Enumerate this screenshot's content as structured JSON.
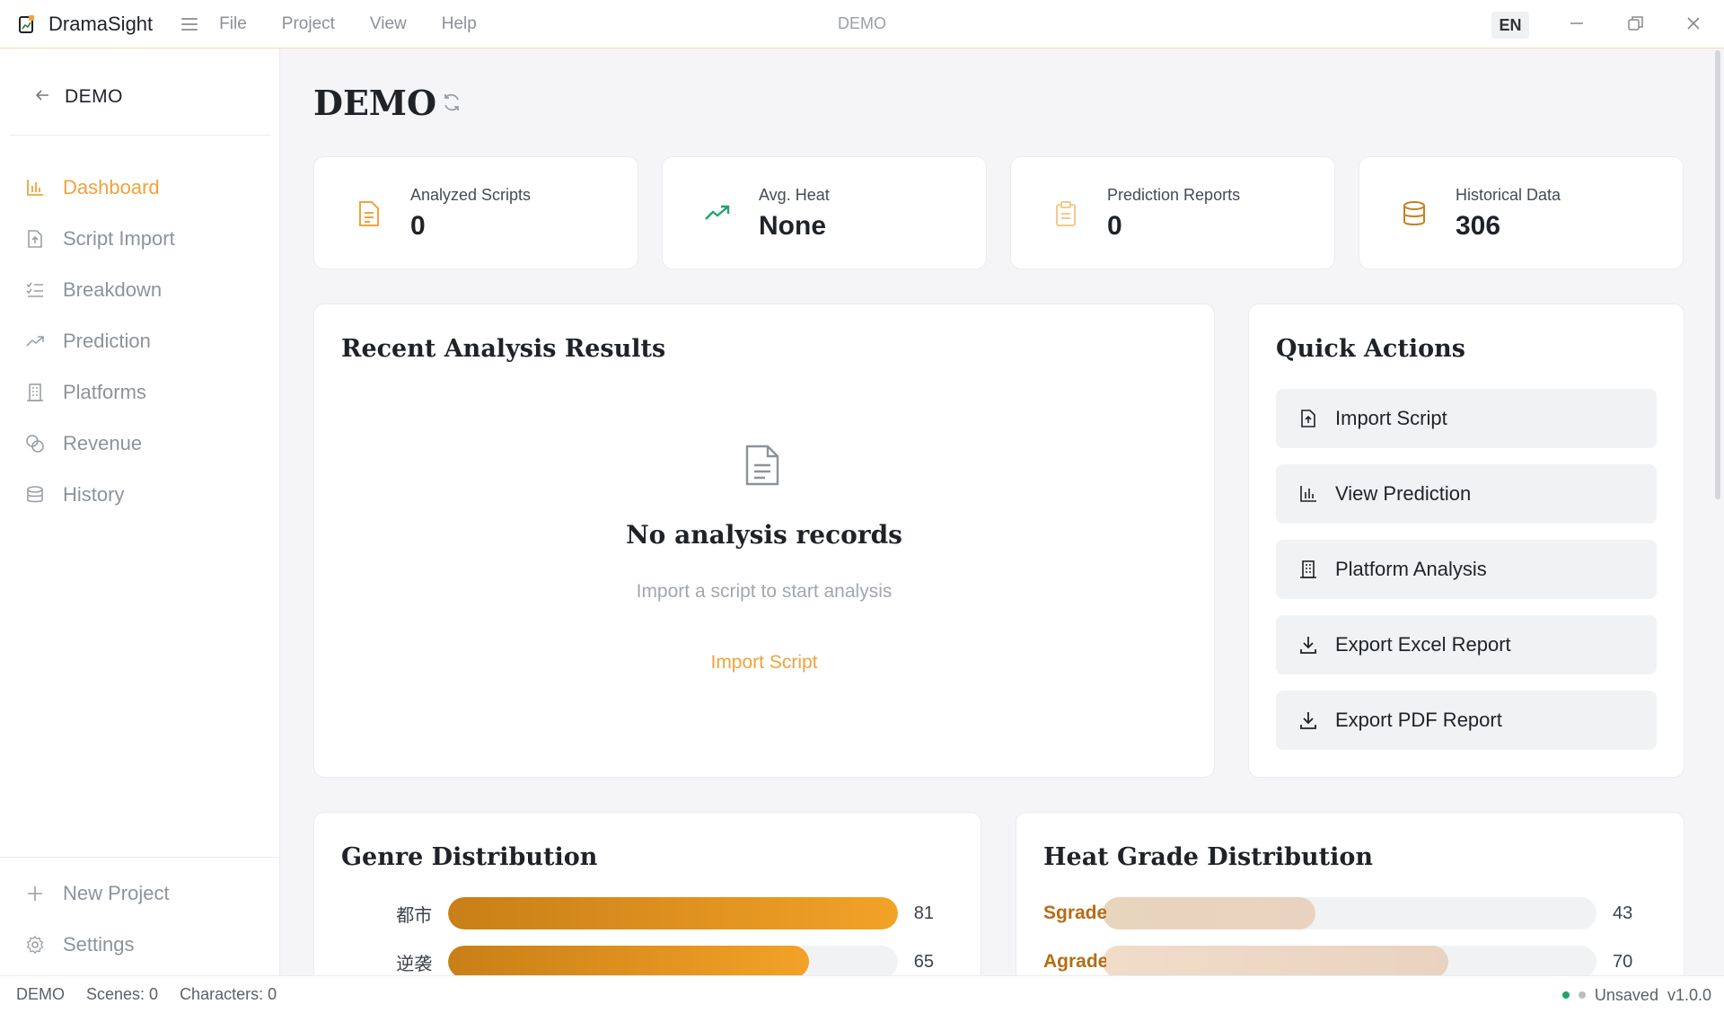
{
  "app": {
    "name": "DramaSight",
    "window_title": "DEMO",
    "language": "EN",
    "menu": [
      "File",
      "Project",
      "View",
      "Help"
    ]
  },
  "sidebar": {
    "project_name": "DEMO",
    "items": [
      {
        "label": "Dashboard",
        "icon": "bar-chart-icon",
        "active": true
      },
      {
        "label": "Script Import",
        "icon": "file-upload-icon",
        "active": false
      },
      {
        "label": "Breakdown",
        "icon": "checklist-icon",
        "active": false
      },
      {
        "label": "Prediction",
        "icon": "trend-up-icon",
        "active": false
      },
      {
        "label": "Platforms",
        "icon": "building-icon",
        "active": false
      },
      {
        "label": "Revenue",
        "icon": "coins-icon",
        "active": false
      },
      {
        "label": "History",
        "icon": "database-icon",
        "active": false
      }
    ],
    "bottom": [
      {
        "label": "New Project",
        "icon": "plus-icon"
      },
      {
        "label": "Settings",
        "icon": "gear-icon"
      }
    ]
  },
  "page": {
    "title": "DEMO"
  },
  "stats": [
    {
      "label": "Analyzed Scripts",
      "value": "0",
      "icon": "document-icon",
      "color": "#f2a23a"
    },
    {
      "label": "Avg. Heat",
      "value": "None",
      "icon": "trend-up-icon",
      "color": "#1fa56a"
    },
    {
      "label": "Prediction Reports",
      "value": "0",
      "icon": "clipboard-icon",
      "color": "#f5c98a"
    },
    {
      "label": "Historical Data",
      "value": "306",
      "icon": "database-icon",
      "color": "#c9801f"
    }
  ],
  "recent": {
    "title": "Recent Analysis Results",
    "empty_title": "No analysis records",
    "empty_subtitle": "Import a script to start analysis",
    "empty_action": "Import Script"
  },
  "quick_actions": {
    "title": "Quick Actions",
    "items": [
      {
        "label": "Import Script",
        "icon": "file-upload-icon"
      },
      {
        "label": "View Prediction",
        "icon": "bar-chart-icon"
      },
      {
        "label": "Platform Analysis",
        "icon": "building-icon"
      },
      {
        "label": "Export Excel Report",
        "icon": "download-icon"
      },
      {
        "label": "Export PDF Report",
        "icon": "download-icon"
      }
    ]
  },
  "genre": {
    "title": "Genre Distribution",
    "max": 81,
    "rows": [
      {
        "label": "都市",
        "value": 81
      },
      {
        "label": "逆袭",
        "value": 65
      }
    ]
  },
  "heat_grade": {
    "title": "Heat Grade Distribution",
    "max": 100,
    "rows": [
      {
        "label": "Sgrade",
        "value": 43,
        "color": "#e8d5bd"
      },
      {
        "label": "Agrade",
        "value": 70,
        "color": "#f1dcc9"
      }
    ]
  },
  "status": {
    "project": "DEMO",
    "scenes": "Scenes: 0",
    "characters": "Characters: 0",
    "save_state": "Unsaved",
    "version": "v1.0.0",
    "dot_colors": [
      "#1fa56a",
      "#b9bdc3"
    ]
  }
}
